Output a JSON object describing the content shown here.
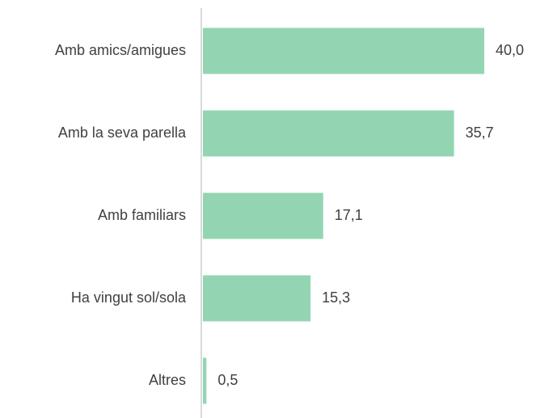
{
  "chart_data": {
    "type": "barh",
    "categories": [
      "Amb amics/amigues",
      "Amb la seva parella",
      "Amb familiars",
      "Ha vingut sol/sola",
      "Altres"
    ],
    "values": [
      40.0,
      35.7,
      17.1,
      15.3,
      0.5
    ],
    "value_labels": [
      "40,0",
      "35,7",
      "17,1",
      "15,3",
      "0,5"
    ],
    "color": "#93d5b3"
  }
}
